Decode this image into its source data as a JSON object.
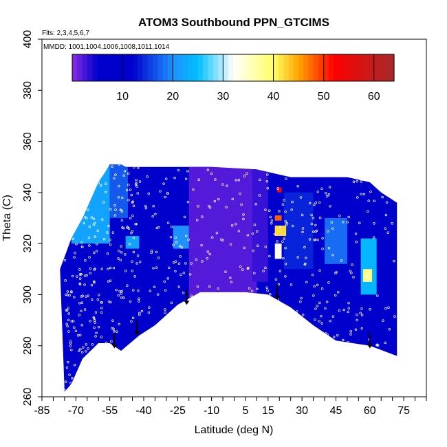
{
  "chart_data": {
    "type": "heatmap",
    "title": "ATOM3 Southbound PPN_GTCIMS",
    "subtitle_flights": "Flts: 2,3,4,5,6,7",
    "subtitle_dates": "MMDD: 1001,1004,1006,1008,1011,1014",
    "xlabel": "Latitude (deg N)",
    "ylabel": "Theta (C)",
    "xlim": [
      -85,
      85
    ],
    "ylim": [
      260,
      400
    ],
    "x_tick_labels": [
      "-85",
      "-70",
      "-55",
      "-40",
      "-25",
      "-10",
      "5",
      "15",
      "30",
      "45",
      "60",
      "75"
    ],
    "x_tick_values": [
      -85,
      -70,
      -55,
      -40,
      -25,
      -10,
      5,
      15,
      30,
      45,
      60,
      75
    ],
    "x_minor_step": 5,
    "y_tick_labels": [
      "260",
      "280",
      "300",
      "320",
      "340",
      "360",
      "380",
      "400"
    ],
    "y_tick_values": [
      260,
      280,
      300,
      320,
      340,
      360,
      380,
      400
    ],
    "colorbar": {
      "min": 0,
      "max": 64,
      "tick_values": [
        10,
        20,
        30,
        40,
        50,
        60
      ],
      "tick_labels": [
        "10",
        "20",
        "30",
        "40",
        "50",
        "60"
      ],
      "color_stops": [
        {
          "value": 0,
          "color": "#8a2be2"
        },
        {
          "value": 5,
          "color": "#0000cd"
        },
        {
          "value": 12,
          "color": "#0000cd"
        },
        {
          "value": 20,
          "color": "#1e90ff"
        },
        {
          "value": 25,
          "color": "#00bfff"
        },
        {
          "value": 32,
          "color": "#ffffff"
        },
        {
          "value": 40,
          "color": "#ffff66"
        },
        {
          "value": 45,
          "color": "#ffa500"
        },
        {
          "value": 52,
          "color": "#ff0000"
        },
        {
          "value": 64,
          "color": "#a52a2a"
        }
      ]
    },
    "curtain": {
      "bottom_theta_vs_lat": [
        [
          -75,
          262
        ],
        [
          -72,
          265
        ],
        [
          -67,
          275
        ],
        [
          -60,
          281
        ],
        [
          -55,
          281
        ],
        [
          -50,
          278
        ],
        [
          -42,
          284
        ],
        [
          -35,
          288
        ],
        [
          -25,
          296
        ],
        [
          -15,
          301
        ],
        [
          -5,
          301
        ],
        [
          5,
          301
        ],
        [
          15,
          300
        ],
        [
          25,
          295
        ],
        [
          35,
          288
        ],
        [
          45,
          282
        ],
        [
          60,
          280
        ],
        [
          72,
          276
        ]
      ],
      "top_theta_vs_lat": [
        [
          -77,
          310
        ],
        [
          -72,
          322
        ],
        [
          -67,
          330
        ],
        [
          -62,
          340
        ],
        [
          -60,
          344
        ],
        [
          -57,
          348
        ],
        [
          -55,
          351
        ],
        [
          -50,
          351
        ],
        [
          -48,
          350
        ],
        [
          -10,
          350
        ],
        [
          10,
          349
        ],
        [
          20,
          347
        ],
        [
          25,
          346
        ],
        [
          50,
          346
        ],
        [
          60,
          344
        ],
        [
          65,
          340
        ],
        [
          72,
          336
        ]
      ],
      "value_regions": [
        {
          "lat_range": [
            -85,
            85
          ],
          "theta_range": [
            260,
            400
          ],
          "value": 8
        },
        {
          "lat_range": [
            -72,
            -55
          ],
          "theta_range": [
            320,
            352
          ],
          "value": 22
        },
        {
          "lat_range": [
            -55,
            -47
          ],
          "theta_range": [
            330,
            352
          ],
          "value": 17
        },
        {
          "lat_range": [
            -20,
            10
          ],
          "theta_range": [
            290,
            352
          ],
          "value": 2
        },
        {
          "lat_range": [
            8,
            15
          ],
          "theta_range": [
            305,
            352
          ],
          "value": 3
        },
        {
          "lat_range": [
            -27,
            -20
          ],
          "theta_range": [
            318,
            327
          ],
          "value": 20
        },
        {
          "lat_range": [
            -48,
            -42
          ],
          "theta_range": [
            318,
            323
          ],
          "value": 22
        },
        {
          "lat_range": [
            15,
            21
          ],
          "theta_range": [
            300,
            345
          ],
          "value": 5
        },
        {
          "lat_range": [
            22,
            35
          ],
          "theta_range": [
            310,
            340
          ],
          "value": 14
        },
        {
          "lat_range": [
            40,
            50
          ],
          "theta_range": [
            312,
            330
          ],
          "value": 18
        },
        {
          "lat_range": [
            56,
            63
          ],
          "theta_range": [
            300,
            322
          ],
          "value": 24
        },
        {
          "lat_range": [
            57,
            61
          ],
          "theta_range": [
            305,
            310
          ],
          "value": 38
        },
        {
          "lat_range": [
            18,
            23
          ],
          "theta_range": [
            323,
            327
          ],
          "value": 42
        },
        {
          "lat_range": [
            18,
            21
          ],
          "theta_range": [
            329,
            331
          ],
          "value": 48
        },
        {
          "lat_range": [
            18,
            21
          ],
          "theta_range": [
            314,
            320
          ],
          "value": 33
        },
        {
          "lat_range": [
            19,
            21
          ],
          "theta_range": [
            340,
            342
          ],
          "value": 55
        }
      ]
    },
    "descent_arrows": [
      {
        "lat": -53,
        "theta_top": 285,
        "theta_bottom": 279
      },
      {
        "lat": -43,
        "theta_top": 290,
        "theta_bottom": 284
      },
      {
        "lat": -21,
        "theta_top": 302,
        "theta_bottom": 296
      },
      {
        "lat": 19,
        "theta_top": 304,
        "theta_bottom": 298
      },
      {
        "lat": 60,
        "theta_top": 285,
        "theta_bottom": 279
      }
    ],
    "sample_points_note": "white open circles mark sample locations"
  },
  "colors": {
    "axis": "#000000",
    "background": "#ffffff",
    "sample_point": "#ffffff",
    "arrow": "#000000"
  }
}
